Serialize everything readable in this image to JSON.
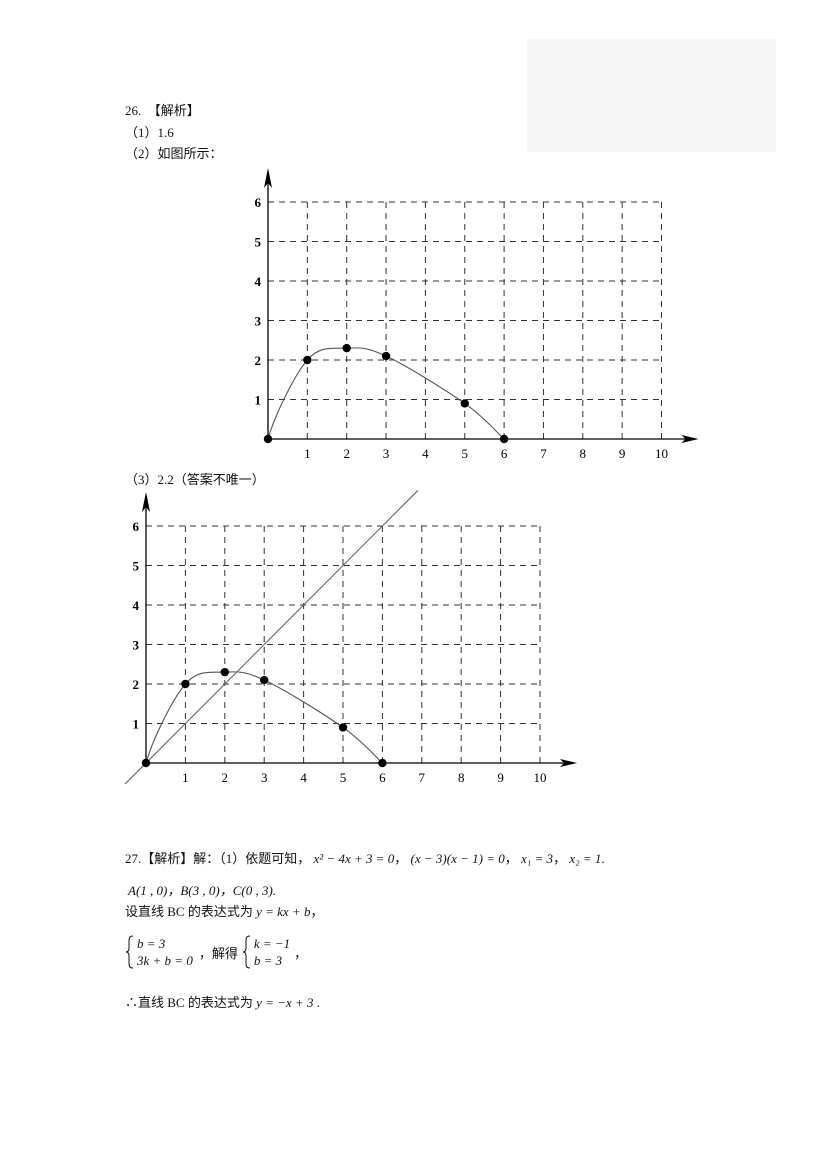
{
  "q26": {
    "header": "26.　【解析】",
    "part1": "（1）1.6",
    "part2": "（2）如图所示：",
    "part3": "（3）2.2（答案不唯一）"
  },
  "q27": {
    "line1_prefix": "27.【解析】解：（1）依题可知，",
    "eq1": "x² − 4x + 3 = 0",
    "eq2": "(x − 3)(x − 1) = 0",
    "eq3": "x₁ = 3",
    "eq4": "x₂ = 1",
    "sep": "，",
    "end": ".",
    "points": "A(1 , 0)，B(3 , 0)，C(0 , 3).",
    "line3_prefix": "设直线 BC 的表达式为 ",
    "line3_eq": "y = kx + b",
    "sys1_a": "b = 3",
    "sys1_b": "3k + b = 0",
    "solve_label": "，解得",
    "sys2_a": "k = −1",
    "sys2_b": "b = 3",
    "conclusion_prefix": "∴直线 BC 的表达式为 ",
    "conclusion_eq": "y = −x + 3"
  },
  "chart_data": [
    {
      "type": "line",
      "x_ticks": [
        "1",
        "2",
        "3",
        "4",
        "5",
        "6",
        "7",
        "8",
        "9",
        "10"
      ],
      "y_ticks": [
        "1",
        "2",
        "3",
        "4",
        "5",
        "6"
      ],
      "xlim": [
        0,
        10
      ],
      "ylim": [
        0,
        6
      ],
      "grid": true,
      "points": [
        [
          0,
          0
        ],
        [
          1,
          2
        ],
        [
          2,
          2.3
        ],
        [
          3,
          2.1
        ],
        [
          5,
          0.9
        ],
        [
          6,
          0
        ]
      ],
      "curve": "smooth"
    },
    {
      "type": "line",
      "x_ticks": [
        "1",
        "2",
        "3",
        "4",
        "5",
        "6",
        "7",
        "8",
        "9",
        "10"
      ],
      "y_ticks": [
        "1",
        "2",
        "3",
        "4",
        "5",
        "6"
      ],
      "xlim": [
        0,
        10
      ],
      "ylim": [
        0,
        6
      ],
      "grid": true,
      "points": [
        [
          0,
          0
        ],
        [
          1,
          2
        ],
        [
          2,
          2.3
        ],
        [
          3,
          2.1
        ],
        [
          5,
          0.9
        ],
        [
          6,
          0
        ]
      ],
      "curve": "smooth",
      "line": {
        "equation": "y = x",
        "x_range": [
          -0.53,
          6.9
        ]
      }
    }
  ]
}
